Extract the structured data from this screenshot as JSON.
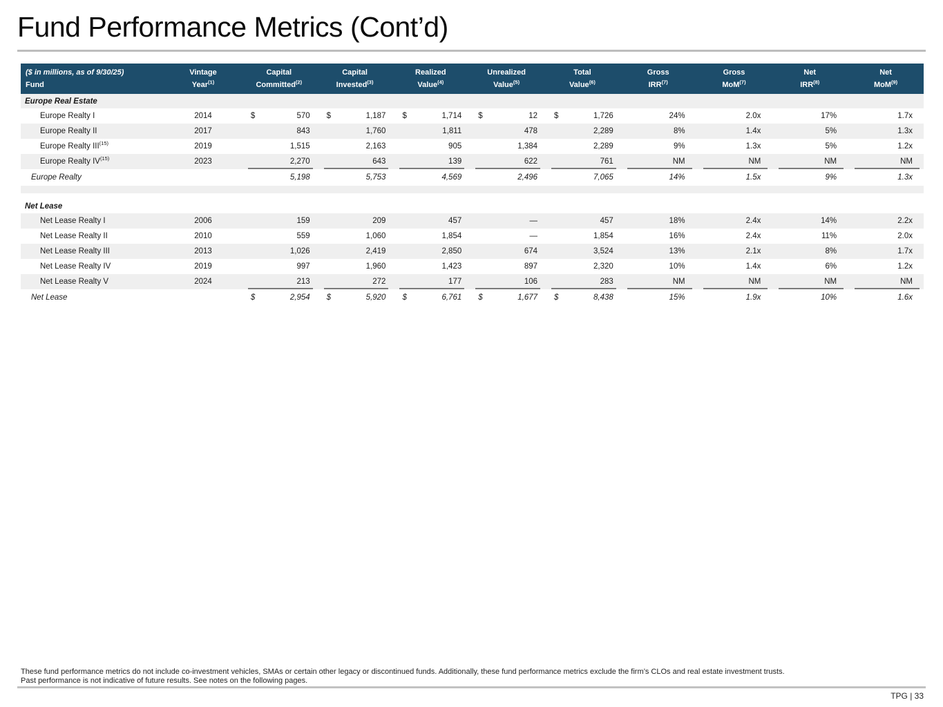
{
  "page": {
    "title": "Fund Performance Metrics (Cont’d)",
    "footnote_line1": "These fund performance metrics do not include co-investment vehicles, SMAs or certain other legacy or discontinued funds. Additionally, these fund performance metrics exclude the firm’s CLOs and real estate investment trusts.",
    "footnote_line2": "Past performance is not indicative of future results. See notes on the following pages.",
    "page_label": "TPG | 33"
  },
  "colors": {
    "header_bg": "#1d4d6b",
    "stripe_gray": "#efefef",
    "row_white": "#ffffff",
    "sum_line": "#7a7a7a",
    "rule_gray": "#bdbdbd"
  },
  "table": {
    "corner": {
      "line1": "($ in millions, as of 9/30/25)",
      "line2": "Fund"
    },
    "columns": [
      {
        "line1": "Vintage",
        "line2": "Year",
        "sup": "(1)",
        "type": "year"
      },
      {
        "line1": "Capital",
        "line2": "Committed",
        "sup": "(2)",
        "type": "money"
      },
      {
        "line1": "Capital",
        "line2": "Invested",
        "sup": "(3)",
        "type": "money"
      },
      {
        "line1": "Realized",
        "line2": "Value",
        "sup": "(4)",
        "type": "money"
      },
      {
        "line1": "Unrealized",
        "line2": "Value",
        "sup": "(5)",
        "type": "money"
      },
      {
        "line1": "Total",
        "line2": "Value",
        "sup": "(6)",
        "type": "money"
      },
      {
        "line1": "Gross",
        "line2": "IRR",
        "sup": "(7)",
        "type": "metric"
      },
      {
        "line1": "Gross",
        "line2": "MoM",
        "sup": "(7)",
        "type": "metric"
      },
      {
        "line1": "Net",
        "line2": "IRR",
        "sup": "(8)",
        "type": "metric"
      },
      {
        "line1": "Net",
        "line2": "MoM",
        "sup": "(9)",
        "type": "metric"
      }
    ],
    "sections": [
      {
        "name": "Europe Real Estate",
        "header_shade": "gray",
        "rows": [
          {
            "fund": "Europe Realty I",
            "sup": "",
            "shade": "white",
            "year": "2014",
            "money": [
              [
                "$",
                "570"
              ],
              [
                "$",
                "1,187"
              ],
              [
                "$",
                "1,714"
              ],
              [
                "$",
                "12"
              ],
              [
                "$",
                "1,726"
              ]
            ],
            "metrics": [
              "24%",
              "2.0x",
              "17%",
              "1.7x"
            ]
          },
          {
            "fund": "Europe Realty II",
            "sup": "",
            "shade": "gray",
            "year": "2017",
            "money": [
              [
                "",
                "843"
              ],
              [
                "",
                "1,760"
              ],
              [
                "",
                "1,811"
              ],
              [
                "",
                "478"
              ],
              [
                "",
                "2,289"
              ]
            ],
            "metrics": [
              "8%",
              "1.4x",
              "5%",
              "1.3x"
            ]
          },
          {
            "fund": "Europe Realty III",
            "sup": "(15)",
            "shade": "white",
            "year": "2019",
            "money": [
              [
                "",
                "1,515"
              ],
              [
                "",
                "2,163"
              ],
              [
                "",
                "905"
              ],
              [
                "",
                "1,384"
              ],
              [
                "",
                "2,289"
              ]
            ],
            "metrics": [
              "9%",
              "1.3x",
              "5%",
              "1.2x"
            ]
          },
          {
            "fund": "Europe Realty IV",
            "sup": "(15)",
            "shade": "gray",
            "year": "2023",
            "money": [
              [
                "",
                "2,270"
              ],
              [
                "",
                "643"
              ],
              [
                "",
                "139"
              ],
              [
                "",
                "622"
              ],
              [
                "",
                "761"
              ]
            ],
            "metrics": [
              "NM",
              "NM",
              "NM",
              "NM"
            ]
          }
        ],
        "total": {
          "fund": "Europe Realty",
          "shade": "white",
          "year": "",
          "money": [
            [
              "",
              "5,198"
            ],
            [
              "",
              "5,753"
            ],
            [
              "",
              "4,569"
            ],
            [
              "",
              "2,496"
            ],
            [
              "",
              "7,065"
            ]
          ],
          "metrics": [
            "14%",
            "1.5x",
            "9%",
            "1.3x"
          ]
        }
      },
      {
        "name": "Net Lease",
        "header_shade": "white",
        "rows": [
          {
            "fund": "Net Lease Realty I",
            "sup": "",
            "shade": "gray",
            "year": "2006",
            "money": [
              [
                "",
                "159"
              ],
              [
                "",
                "209"
              ],
              [
                "",
                "457"
              ],
              [
                "",
                "—"
              ],
              [
                "",
                "457"
              ]
            ],
            "metrics": [
              "18%",
              "2.4x",
              "14%",
              "2.2x"
            ]
          },
          {
            "fund": "Net Lease Realty II",
            "sup": "",
            "shade": "white",
            "year": "2010",
            "money": [
              [
                "",
                "559"
              ],
              [
                "",
                "1,060"
              ],
              [
                "",
                "1,854"
              ],
              [
                "",
                "—"
              ],
              [
                "",
                "1,854"
              ]
            ],
            "metrics": [
              "16%",
              "2.4x",
              "11%",
              "2.0x"
            ]
          },
          {
            "fund": "Net Lease Realty III",
            "sup": "",
            "shade": "gray",
            "year": "2013",
            "money": [
              [
                "",
                "1,026"
              ],
              [
                "",
                "2,419"
              ],
              [
                "",
                "2,850"
              ],
              [
                "",
                "674"
              ],
              [
                "",
                "3,524"
              ]
            ],
            "metrics": [
              "13%",
              "2.1x",
              "8%",
              "1.7x"
            ]
          },
          {
            "fund": "Net Lease Realty IV",
            "sup": "",
            "shade": "white",
            "year": "2019",
            "money": [
              [
                "",
                "997"
              ],
              [
                "",
                "1,960"
              ],
              [
                "",
                "1,423"
              ],
              [
                "",
                "897"
              ],
              [
                "",
                "2,320"
              ]
            ],
            "metrics": [
              "10%",
              "1.4x",
              "6%",
              "1.2x"
            ]
          },
          {
            "fund": "Net Lease Realty V",
            "sup": "",
            "shade": "gray",
            "year": "2024",
            "money": [
              [
                "",
                "213"
              ],
              [
                "",
                "272"
              ],
              [
                "",
                "177"
              ],
              [
                "",
                "106"
              ],
              [
                "",
                "283"
              ]
            ],
            "metrics": [
              "NM",
              "NM",
              "NM",
              "NM"
            ]
          }
        ],
        "total": {
          "fund": "Net Lease",
          "shade": "white",
          "year": "",
          "money": [
            [
              "$",
              "2,954"
            ],
            [
              "$",
              "5,920"
            ],
            [
              "$",
              "6,761"
            ],
            [
              "$",
              "1,677"
            ],
            [
              "$",
              "8,438"
            ]
          ],
          "metrics": [
            "15%",
            "1.9x",
            "10%",
            "1.6x"
          ]
        }
      }
    ]
  }
}
